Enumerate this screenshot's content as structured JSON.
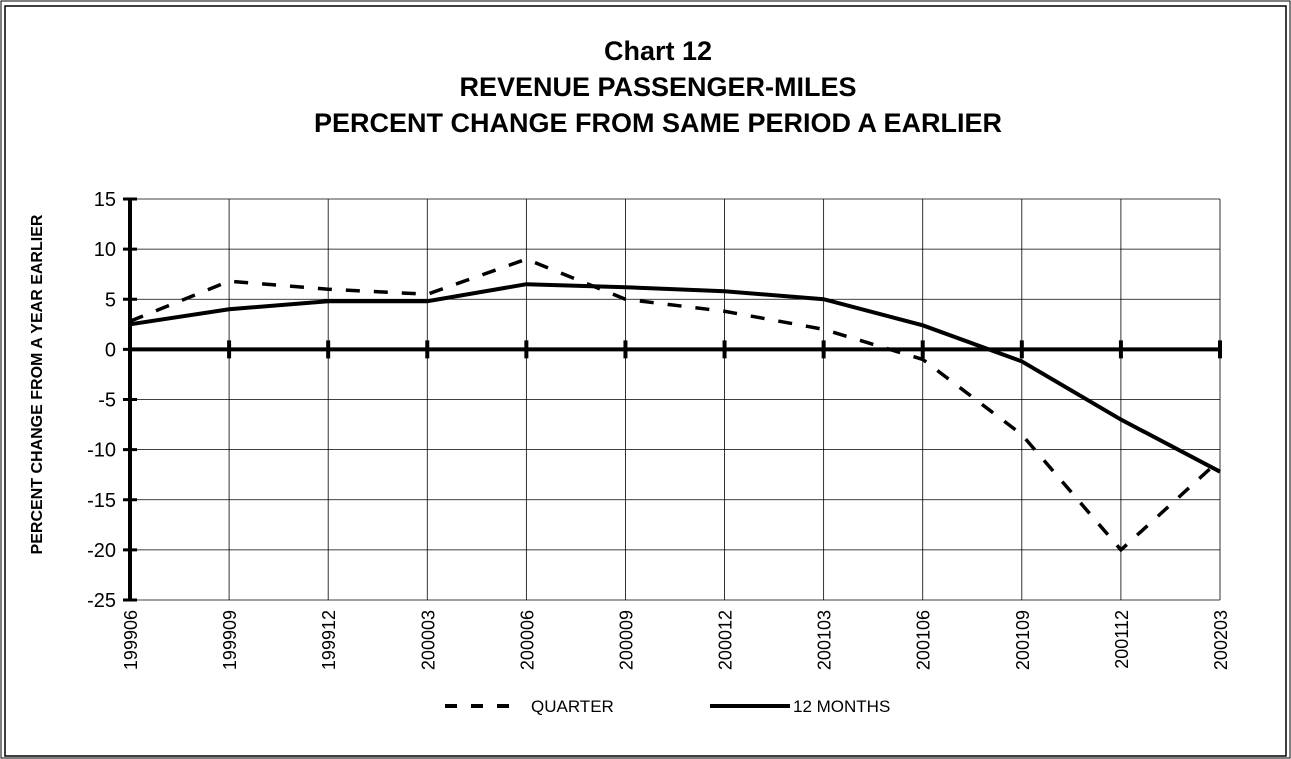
{
  "chart_data": {
    "type": "line",
    "title": [
      "Chart 12",
      "REVENUE PASSENGER-MILES",
      "PERCENT CHANGE FROM SAME PERIOD A EARLIER"
    ],
    "y_label": "PERCENT CHANGE FROM A YEAR EARLIER",
    "categories": [
      "199906",
      "199909",
      "199912",
      "200003",
      "200006",
      "200009",
      "200012",
      "200103",
      "200106",
      "200109",
      "200112",
      "200203"
    ],
    "series": [
      {
        "name": "QUARTER",
        "color": "#000000",
        "dash": true,
        "values": [
          2.8,
          6.8,
          6.0,
          5.5,
          9.0,
          5.0,
          3.8,
          2.0,
          -1.0,
          -8.5,
          -20.0,
          -11.0
        ]
      },
      {
        "name": "12 MONTHS",
        "color": "#000000",
        "dash": false,
        "values": [
          2.5,
          4.0,
          4.8,
          4.8,
          6.5,
          6.2,
          5.8,
          5.0,
          2.4,
          -1.2,
          -7.0,
          -12.2
        ]
      }
    ],
    "ylim": [
      -25,
      15
    ],
    "yticks": [
      -25,
      -20,
      -15,
      -10,
      -5,
      0,
      5,
      10,
      15
    ],
    "grid": true,
    "legend": "bottom"
  }
}
